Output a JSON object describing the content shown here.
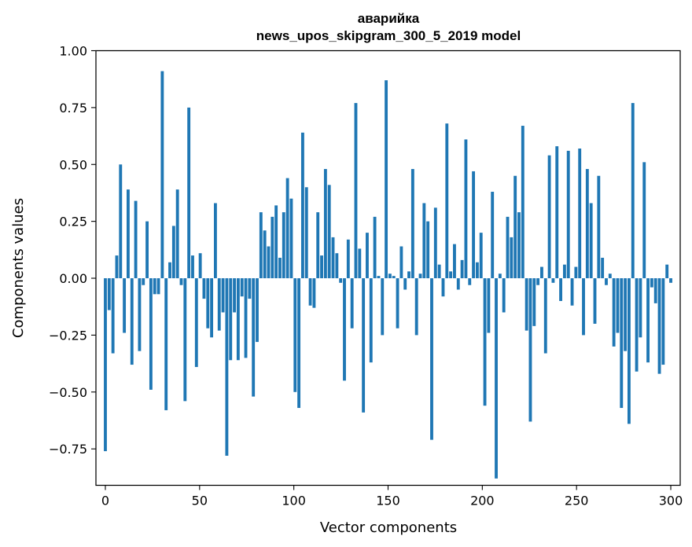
{
  "chart_data": {
    "type": "bar",
    "title_line1": "аварийка",
    "title_line2": "news_upos_skipgram_300_5_2019 model",
    "xlabel": "Vector components",
    "ylabel": "Components values",
    "xlim": [
      -5,
      305
    ],
    "ylim": [
      -0.91,
      1.0
    ],
    "xticks": [
      0,
      50,
      100,
      150,
      200,
      250,
      300
    ],
    "xtick_labels": [
      "0",
      "50",
      "100",
      "150",
      "200",
      "250",
      "300"
    ],
    "yticks": [
      -0.75,
      -0.5,
      -0.25,
      0.0,
      0.25,
      0.5,
      0.75,
      1.0
    ],
    "ytick_labels": [
      "−0.75",
      "−0.50",
      "−0.25",
      "0.00",
      "0.25",
      "0.50",
      "0.75",
      "1.00"
    ],
    "bar_color": "#1f77b4",
    "grid": false,
    "values": [
      -0.76,
      -0.14,
      -0.33,
      0.1,
      0.5,
      -0.24,
      0.39,
      -0.38,
      0.34,
      -0.32,
      -0.03,
      0.25,
      -0.49,
      -0.07,
      -0.07,
      0.91,
      -0.58,
      0.07,
      0.23,
      0.39,
      -0.03,
      -0.54,
      0.75,
      0.1,
      -0.39,
      0.11,
      -0.09,
      -0.22,
      -0.26,
      0.33,
      -0.23,
      -0.15,
      -0.78,
      -0.36,
      -0.15,
      -0.36,
      -0.08,
      -0.35,
      -0.09,
      -0.52,
      -0.28,
      0.29,
      0.21,
      0.14,
      0.27,
      0.32,
      0.09,
      0.29,
      0.44,
      0.35,
      -0.5,
      -0.57,
      0.64,
      0.4,
      -0.12,
      -0.13,
      0.29,
      0.1,
      0.48,
      0.41,
      0.18,
      0.11,
      -0.02,
      -0.45,
      0.17,
      -0.22,
      0.77,
      0.13,
      -0.59,
      0.2,
      -0.37,
      0.27,
      0.01,
      -0.25,
      0.87,
      0.02,
      0.01,
      -0.22,
      0.14,
      -0.05,
      0.03,
      0.48,
      -0.25,
      0.02,
      0.33,
      0.25,
      -0.71,
      0.31,
      0.06,
      -0.08,
      0.68,
      0.03,
      0.15,
      -0.05,
      0.08,
      0.61,
      -0.03,
      0.47,
      0.07,
      0.2,
      -0.56,
      -0.24,
      0.38,
      -0.88,
      0.02,
      -0.15,
      0.27,
      0.18,
      0.45,
      0.29,
      0.67,
      -0.23,
      -0.63,
      -0.21,
      -0.03,
      0.05,
      -0.33,
      0.54,
      -0.02,
      0.58,
      -0.1,
      0.06,
      0.56,
      -0.12,
      0.05,
      0.57,
      -0.25,
      0.48,
      0.33,
      -0.2,
      0.45,
      0.09,
      -0.03,
      0.02,
      -0.3,
      -0.24,
      -0.57,
      -0.32,
      -0.64,
      0.77,
      -0.41,
      -0.26,
      0.51,
      -0.37,
      -0.04,
      -0.11,
      -0.42,
      -0.38,
      0.06,
      -0.02
    ]
  }
}
